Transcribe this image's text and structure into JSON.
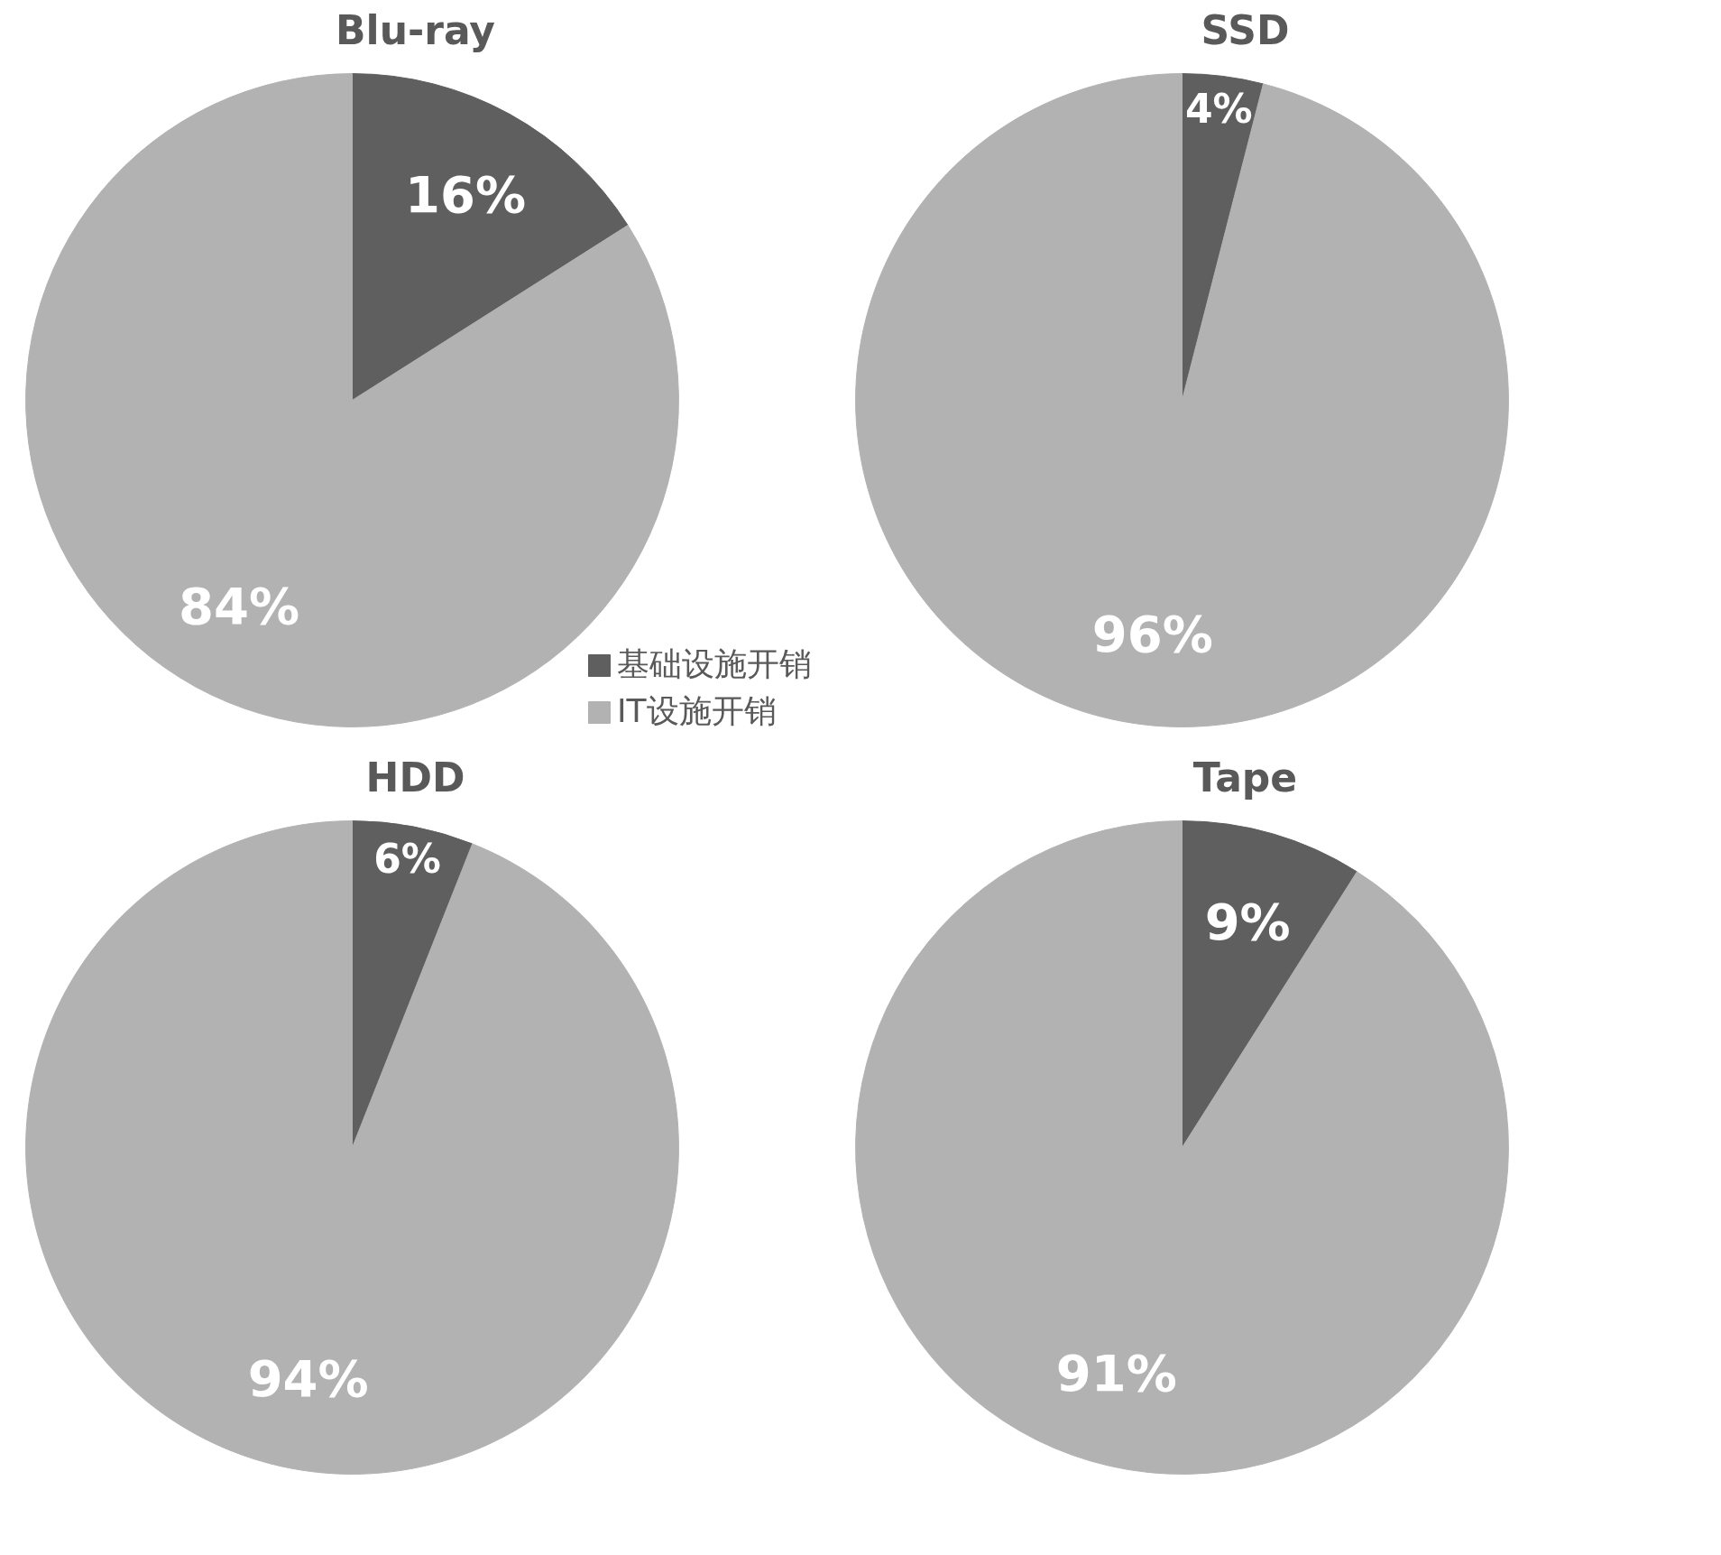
{
  "chart_data": [
    {
      "type": "pie",
      "title": "Blu-ray",
      "categories": [
        "基础设施开销",
        "IT设施开销"
      ],
      "values": [
        16,
        84
      ],
      "colors": [
        "#5f5f5f",
        "#b2b2b2"
      ],
      "value_labels": [
        "16%",
        "84%"
      ],
      "legend": "bottom right"
    },
    {
      "type": "pie",
      "title": "SSD",
      "values": [
        4,
        96
      ],
      "colors": [
        "#5f5f5f",
        "#b2b2b2"
      ],
      "value_labels": [
        "4%",
        "96%"
      ]
    },
    {
      "type": "pie",
      "title": "HDD",
      "values": [
        6,
        94
      ],
      "colors": [
        "#5f5f5f",
        "#b2b2b2"
      ],
      "value_labels": [
        "6%",
        "94%"
      ]
    },
    {
      "type": "pie",
      "title": "Tape",
      "values": [
        9,
        91
      ],
      "colors": [
        "#5f5f5f",
        "#b2b2b2"
      ],
      "value_labels": [
        "9%",
        "91%"
      ]
    }
  ]
}
